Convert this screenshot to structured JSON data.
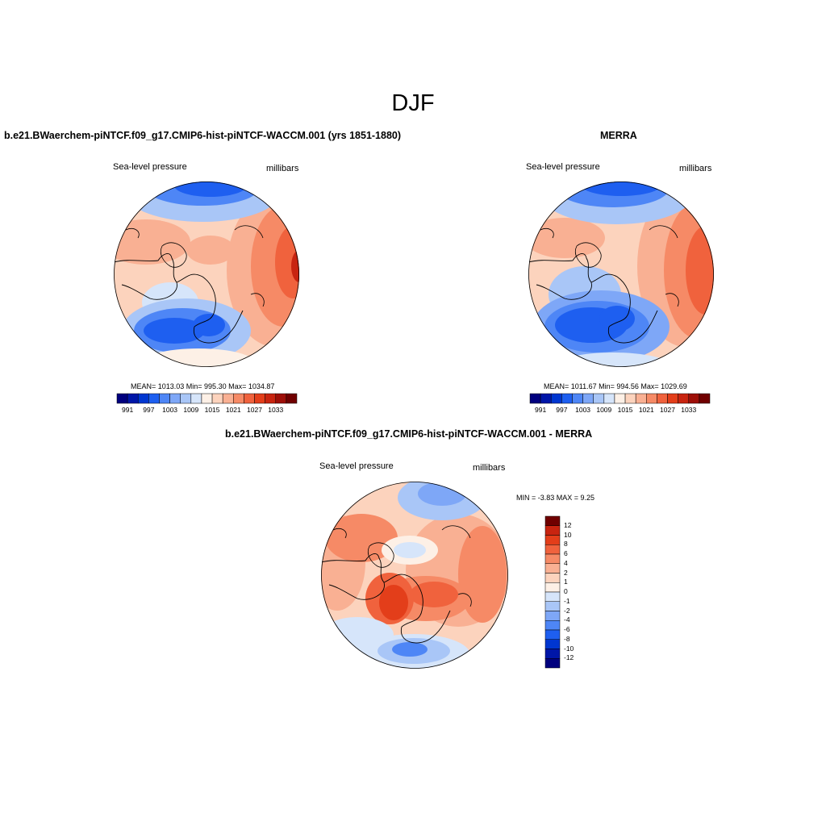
{
  "title": "DJF",
  "panels": {
    "model": {
      "title": "b.e21.BWaerchem-piNTCF.f09_g17.CMIP6-hist-piNTCF-WACCM.001 (yrs 1851-1880)",
      "left_label": "Sea-level pressure",
      "right_label": "millibars",
      "stats": "MEAN= 1013.03  Min= 995.30  Max= 1034.87",
      "mean": 1013.03,
      "min": 995.3,
      "max": 1034.87
    },
    "obs": {
      "title": "MERRA",
      "left_label": "Sea-level pressure",
      "right_label": "millibars",
      "stats": "MEAN= 1011.67  Min= 994.56  Max= 1029.69",
      "mean": 1011.67,
      "min": 994.56,
      "max": 1029.69
    },
    "diff": {
      "title": "b.e21.BWaerchem-piNTCF.f09_g17.CMIP6-hist-piNTCF-WACCM.001 - MERRA",
      "left_label": "Sea-level pressure",
      "right_label": "millibars",
      "stats": "MIN =  -3.83 MAX =   9.25",
      "min": -3.83,
      "max": 9.25
    }
  },
  "colorbar_abs": {
    "colors": [
      "#00007e",
      "#0016a8",
      "#0036d0",
      "#1e5ff0",
      "#4e86f6",
      "#7ea7f7",
      "#a9c6f7",
      "#d6e5fa",
      "#fdf0e6",
      "#fcd3bd",
      "#f9b093",
      "#f68a66",
      "#f0623d",
      "#e33e1a",
      "#c82410",
      "#9e0f08",
      "#700000"
    ],
    "tick_labels": [
      "991",
      "997",
      "1003",
      "1009",
      "1015",
      "1021",
      "1027",
      "1033"
    ]
  },
  "colorbar_diff": {
    "colors": [
      "#00007e",
      "#0016a8",
      "#0036d0",
      "#1e5ff0",
      "#4e86f6",
      "#7ea7f7",
      "#a9c6f7",
      "#d6e5fa",
      "#fdf0e6",
      "#fcd3bd",
      "#f9b093",
      "#f68a66",
      "#f0623d",
      "#e33e1a",
      "#c82410",
      "#700000"
    ],
    "tick_labels": [
      "12",
      "10",
      "8",
      "6",
      "4",
      "2",
      "1",
      "0",
      "-1",
      "-2",
      "-4",
      "-6",
      "-8",
      "-10",
      "-12"
    ]
  }
}
